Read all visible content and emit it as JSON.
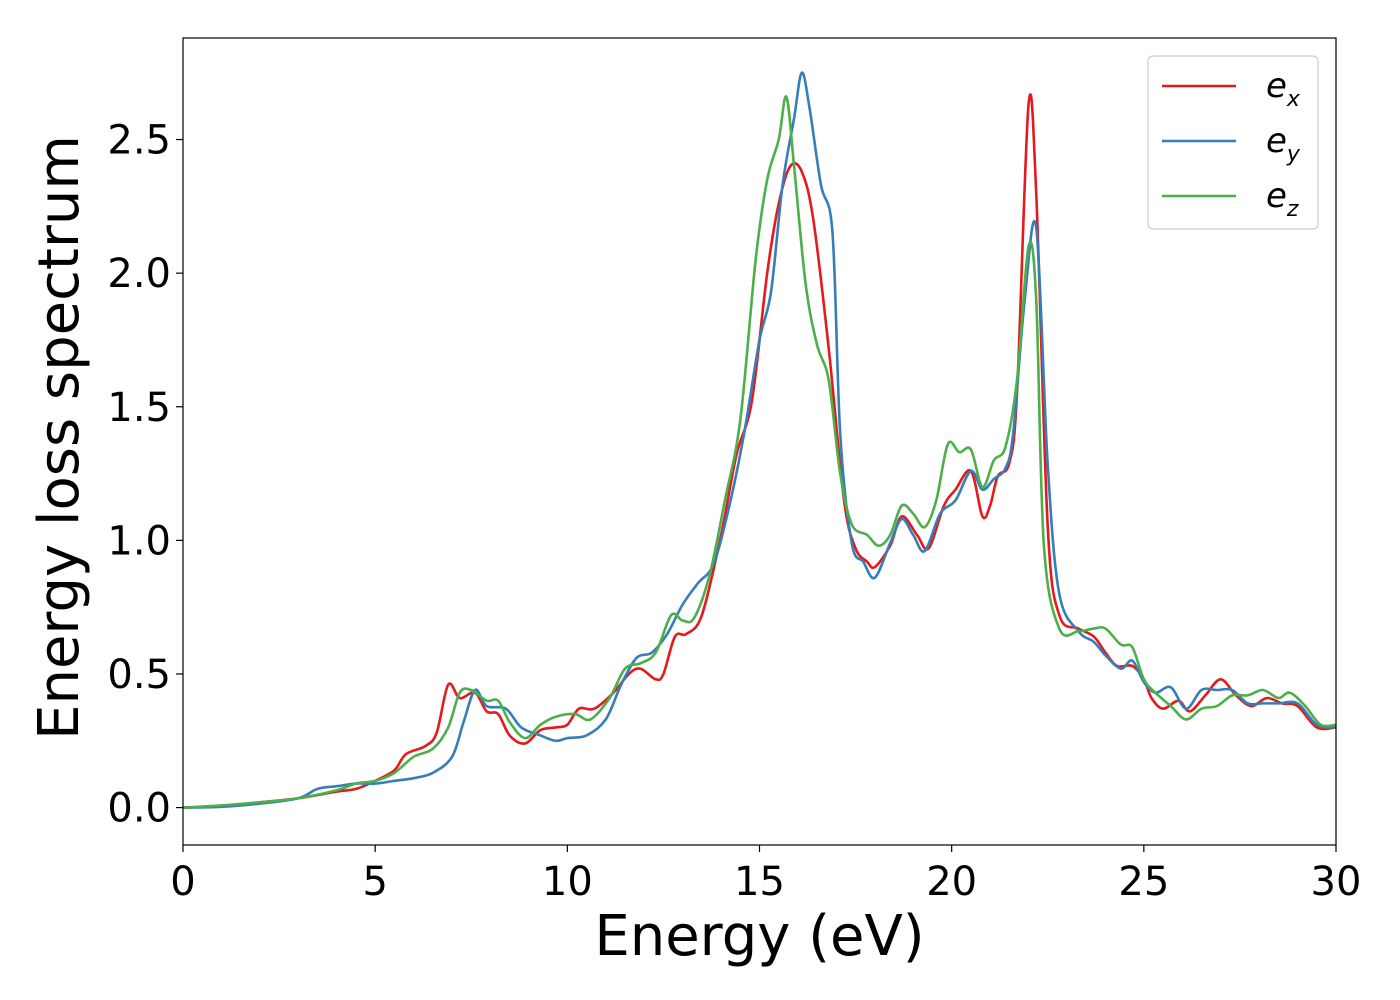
{
  "chart_data": {
    "type": "line",
    "xlabel": "Energy (eV)",
    "ylabel": "Energy loss spectrum",
    "xlim": [
      0,
      30
    ],
    "ylim": [
      -0.14,
      2.88
    ],
    "x_ticks": [
      0,
      5,
      10,
      15,
      20,
      25,
      30
    ],
    "y_ticks": [
      "0.0",
      "0.5",
      "1.0",
      "1.5",
      "2.0",
      "2.5"
    ],
    "grid": false,
    "legend_position": "top-right",
    "series": [
      {
        "name": "e_x",
        "legend_base": "e",
        "legend_sub": "x",
        "color": "#e41a1c",
        "points": [
          [
            0,
            0.0
          ],
          [
            1,
            0.005
          ],
          [
            2,
            0.02
          ],
          [
            3,
            0.035
          ],
          [
            4,
            0.06
          ],
          [
            4.5,
            0.07
          ],
          [
            5,
            0.1
          ],
          [
            5.5,
            0.14
          ],
          [
            5.8,
            0.2
          ],
          [
            6.3,
            0.23
          ],
          [
            6.6,
            0.28
          ],
          [
            6.9,
            0.46
          ],
          [
            7.2,
            0.41
          ],
          [
            7.6,
            0.43
          ],
          [
            7.9,
            0.36
          ],
          [
            8.2,
            0.35
          ],
          [
            8.5,
            0.27
          ],
          [
            8.9,
            0.24
          ],
          [
            9.3,
            0.29
          ],
          [
            9.7,
            0.3
          ],
          [
            10,
            0.31
          ],
          [
            10.3,
            0.37
          ],
          [
            10.7,
            0.37
          ],
          [
            11.2,
            0.43
          ],
          [
            11.6,
            0.5
          ],
          [
            11.9,
            0.52
          ],
          [
            12.3,
            0.48
          ],
          [
            12.5,
            0.5
          ],
          [
            12.8,
            0.64
          ],
          [
            13.1,
            0.65
          ],
          [
            13.5,
            0.72
          ],
          [
            14,
            1.02
          ],
          [
            14.4,
            1.32
          ],
          [
            14.8,
            1.52
          ],
          [
            15.2,
            2.0
          ],
          [
            15.5,
            2.26
          ],
          [
            15.8,
            2.4
          ],
          [
            16.1,
            2.38
          ],
          [
            16.4,
            2.2
          ],
          [
            16.8,
            1.72
          ],
          [
            17.2,
            1.15
          ],
          [
            17.5,
            0.97
          ],
          [
            17.8,
            0.92
          ],
          [
            18,
            0.9
          ],
          [
            18.4,
            0.98
          ],
          [
            18.7,
            1.09
          ],
          [
            19.1,
            1.02
          ],
          [
            19.4,
            0.97
          ],
          [
            19.8,
            1.13
          ],
          [
            20.1,
            1.19
          ],
          [
            20.5,
            1.26
          ],
          [
            20.8,
            1.09
          ],
          [
            21.0,
            1.13
          ],
          [
            21.2,
            1.24
          ],
          [
            21.5,
            1.29
          ],
          [
            21.7,
            1.55
          ],
          [
            22.0,
            2.63
          ],
          [
            22.2,
            2.3
          ],
          [
            22.5,
            1.05
          ],
          [
            22.8,
            0.72
          ],
          [
            23.3,
            0.67
          ],
          [
            23.7,
            0.64
          ],
          [
            24.0,
            0.58
          ],
          [
            24.3,
            0.53
          ],
          [
            24.7,
            0.53
          ],
          [
            25.0,
            0.48
          ],
          [
            25.2,
            0.41
          ],
          [
            25.5,
            0.37
          ],
          [
            25.9,
            0.4
          ],
          [
            26.2,
            0.36
          ],
          [
            26.6,
            0.42
          ],
          [
            27.0,
            0.48
          ],
          [
            27.4,
            0.42
          ],
          [
            27.8,
            0.38
          ],
          [
            28.2,
            0.41
          ],
          [
            28.6,
            0.39
          ],
          [
            29.0,
            0.38
          ],
          [
            29.5,
            0.3
          ],
          [
            30,
            0.3
          ]
        ]
      },
      {
        "name": "e_y",
        "legend_base": "e",
        "legend_sub": "y",
        "color": "#377eb8",
        "points": [
          [
            0,
            0.0
          ],
          [
            1,
            0.003
          ],
          [
            2,
            0.015
          ],
          [
            3,
            0.035
          ],
          [
            3.5,
            0.07
          ],
          [
            4,
            0.08
          ],
          [
            4.5,
            0.09
          ],
          [
            5,
            0.09
          ],
          [
            5.5,
            0.1
          ],
          [
            6,
            0.11
          ],
          [
            6.5,
            0.13
          ],
          [
            7,
            0.19
          ],
          [
            7.3,
            0.32
          ],
          [
            7.6,
            0.44
          ],
          [
            7.9,
            0.38
          ],
          [
            8.4,
            0.37
          ],
          [
            8.8,
            0.3
          ],
          [
            9.3,
            0.27
          ],
          [
            9.7,
            0.25
          ],
          [
            10,
            0.26
          ],
          [
            10.5,
            0.27
          ],
          [
            11,
            0.33
          ],
          [
            11.4,
            0.46
          ],
          [
            11.8,
            0.56
          ],
          [
            12.2,
            0.58
          ],
          [
            12.6,
            0.65
          ],
          [
            13.0,
            0.76
          ],
          [
            13.4,
            0.84
          ],
          [
            13.8,
            0.91
          ],
          [
            14.2,
            1.12
          ],
          [
            14.6,
            1.4
          ],
          [
            15.0,
            1.75
          ],
          [
            15.3,
            1.93
          ],
          [
            15.6,
            2.33
          ],
          [
            15.9,
            2.58
          ],
          [
            16.1,
            2.75
          ],
          [
            16.3,
            2.62
          ],
          [
            16.6,
            2.33
          ],
          [
            16.9,
            2.15
          ],
          [
            17.1,
            1.4
          ],
          [
            17.4,
            0.99
          ],
          [
            17.7,
            0.92
          ],
          [
            18.0,
            0.86
          ],
          [
            18.4,
            0.99
          ],
          [
            18.7,
            1.08
          ],
          [
            19.0,
            1.02
          ],
          [
            19.3,
            0.96
          ],
          [
            19.7,
            1.1
          ],
          [
            20.1,
            1.15
          ],
          [
            20.5,
            1.26
          ],
          [
            20.8,
            1.19
          ],
          [
            21.1,
            1.23
          ],
          [
            21.4,
            1.27
          ],
          [
            21.6,
            1.4
          ],
          [
            21.9,
            1.9
          ],
          [
            22.2,
            2.17
          ],
          [
            22.5,
            1.28
          ],
          [
            22.8,
            0.8
          ],
          [
            23.3,
            0.66
          ],
          [
            23.7,
            0.62
          ],
          [
            24.0,
            0.57
          ],
          [
            24.4,
            0.52
          ],
          [
            24.7,
            0.55
          ],
          [
            25.0,
            0.47
          ],
          [
            25.3,
            0.43
          ],
          [
            25.7,
            0.45
          ],
          [
            26.1,
            0.37
          ],
          [
            26.5,
            0.44
          ],
          [
            26.9,
            0.44
          ],
          [
            27.3,
            0.44
          ],
          [
            27.7,
            0.39
          ],
          [
            28.1,
            0.39
          ],
          [
            28.5,
            0.39
          ],
          [
            29.0,
            0.39
          ],
          [
            29.5,
            0.31
          ],
          [
            30,
            0.3
          ]
        ]
      },
      {
        "name": "e_z",
        "legend_base": "e",
        "legend_sub": "z",
        "color": "#4daf4a",
        "points": [
          [
            0,
            0.0
          ],
          [
            1,
            0.008
          ],
          [
            2,
            0.02
          ],
          [
            3,
            0.035
          ],
          [
            4,
            0.065
          ],
          [
            4.5,
            0.09
          ],
          [
            5,
            0.1
          ],
          [
            5.5,
            0.13
          ],
          [
            6,
            0.19
          ],
          [
            6.5,
            0.22
          ],
          [
            6.9,
            0.3
          ],
          [
            7.2,
            0.43
          ],
          [
            7.5,
            0.44
          ],
          [
            7.9,
            0.4
          ],
          [
            8.2,
            0.4
          ],
          [
            8.5,
            0.32
          ],
          [
            8.9,
            0.26
          ],
          [
            9.3,
            0.31
          ],
          [
            9.7,
            0.34
          ],
          [
            10.2,
            0.35
          ],
          [
            10.6,
            0.33
          ],
          [
            11.1,
            0.41
          ],
          [
            11.5,
            0.52
          ],
          [
            11.9,
            0.54
          ],
          [
            12.3,
            0.58
          ],
          [
            12.7,
            0.72
          ],
          [
            13.0,
            0.7
          ],
          [
            13.3,
            0.71
          ],
          [
            13.7,
            0.87
          ],
          [
            14.1,
            1.15
          ],
          [
            14.5,
            1.45
          ],
          [
            14.9,
            2.05
          ],
          [
            15.2,
            2.35
          ],
          [
            15.5,
            2.5
          ],
          [
            15.7,
            2.66
          ],
          [
            15.9,
            2.4
          ],
          [
            16.2,
            1.96
          ],
          [
            16.5,
            1.73
          ],
          [
            16.8,
            1.6
          ],
          [
            17.1,
            1.25
          ],
          [
            17.4,
            1.06
          ],
          [
            17.8,
            1.02
          ],
          [
            18.1,
            0.98
          ],
          [
            18.4,
            1.02
          ],
          [
            18.7,
            1.13
          ],
          [
            19.0,
            1.1
          ],
          [
            19.3,
            1.05
          ],
          [
            19.6,
            1.15
          ],
          [
            19.9,
            1.36
          ],
          [
            20.2,
            1.33
          ],
          [
            20.5,
            1.34
          ],
          [
            20.8,
            1.2
          ],
          [
            21.1,
            1.3
          ],
          [
            21.4,
            1.35
          ],
          [
            21.7,
            1.6
          ],
          [
            22.0,
            2.1
          ],
          [
            22.2,
            1.9
          ],
          [
            22.4,
            0.98
          ],
          [
            22.8,
            0.67
          ],
          [
            23.3,
            0.66
          ],
          [
            23.7,
            0.67
          ],
          [
            24.0,
            0.67
          ],
          [
            24.4,
            0.61
          ],
          [
            24.7,
            0.6
          ],
          [
            25.0,
            0.48
          ],
          [
            25.3,
            0.43
          ],
          [
            25.7,
            0.38
          ],
          [
            26.1,
            0.33
          ],
          [
            26.5,
            0.37
          ],
          [
            26.9,
            0.38
          ],
          [
            27.3,
            0.42
          ],
          [
            27.7,
            0.42
          ],
          [
            28.1,
            0.44
          ],
          [
            28.5,
            0.41
          ],
          [
            28.8,
            0.43
          ],
          [
            29.2,
            0.38
          ],
          [
            29.6,
            0.31
          ],
          [
            30,
            0.31
          ]
        ]
      }
    ]
  }
}
